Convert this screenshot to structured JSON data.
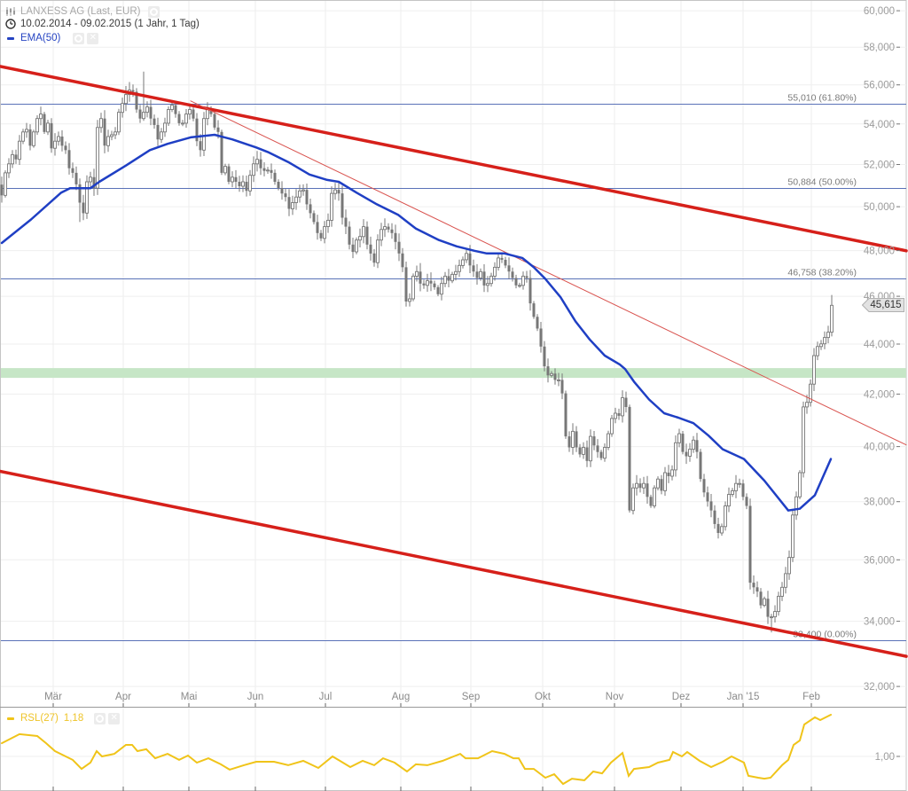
{
  "header": {
    "title": "LANXESS AG (Last, EUR)",
    "date_range": "10.02.2014 - 09.02.2015 (1 Jahr, 1 Tag)",
    "indicator_label": "EMA(50)"
  },
  "rsl_legend": {
    "label": "RSL(27)",
    "value": "1,18"
  },
  "price_tag": {
    "value": "45,615"
  },
  "icons": {
    "title": "candlestick-chart-icon",
    "range": "clock-icon",
    "settings": "gear-icon",
    "remove": "close-icon"
  },
  "chart_data": {
    "type": "line",
    "style": "candlestick",
    "title": "LANXESS AG (Last, EUR)",
    "subtitle": "10.02.2014 - 09.02.2015 (1 Jahr, 1 Tag)",
    "xlabel": "",
    "ylabel": "",
    "grid": true,
    "legend_position": "top-left",
    "colors": {
      "ema": "#1f3fc4",
      "trend_thick": "#d6201a",
      "trend_thin": "#d9534f",
      "fib": "#5a72b8",
      "rsl": "#f0c419",
      "candle": "#777777",
      "band": "#c6e6c6"
    },
    "price_panel": {
      "ylim": [
        31400,
        60600
      ],
      "scale": "log"
    },
    "yaxis": {
      "ticks": [
        {
          "value": 60000,
          "label": "60,000"
        },
        {
          "value": 58000,
          "label": "58,000"
        },
        {
          "value": 56000,
          "label": "56,000"
        },
        {
          "value": 54000,
          "label": "54,000"
        },
        {
          "value": 52000,
          "label": "52,000"
        },
        {
          "value": 50000,
          "label": "50,000"
        },
        {
          "value": 48000,
          "label": "48,000"
        },
        {
          "value": 46000,
          "label": "46,000"
        },
        {
          "value": 44000,
          "label": "44,000"
        },
        {
          "value": 42000,
          "label": "42,000"
        },
        {
          "value": 40000,
          "label": "40,000"
        },
        {
          "value": 38000,
          "label": "38,000"
        },
        {
          "value": 36000,
          "label": "36,000"
        },
        {
          "value": 34000,
          "label": "34,000"
        },
        {
          "value": 32000,
          "label": "32,000"
        }
      ]
    },
    "xaxis": {
      "ticks": [
        {
          "idx": 14.5,
          "label": "Mär"
        },
        {
          "idx": 34.25,
          "label": "Apr"
        },
        {
          "idx": 52.75,
          "label": "Mai"
        },
        {
          "idx": 71.5,
          "label": "Jun"
        },
        {
          "idx": 91.25,
          "label": "Jul"
        },
        {
          "idx": 112.5,
          "label": "Aug"
        },
        {
          "idx": 132.25,
          "label": "Sep"
        },
        {
          "idx": 152.5,
          "label": "Okt"
        },
        {
          "idx": 172.75,
          "label": "Nov"
        },
        {
          "idx": 191.5,
          "label": "Dez"
        },
        {
          "idx": 209,
          "label": "Jan '15"
        },
        {
          "idx": 228.25,
          "label": "Feb"
        }
      ]
    },
    "closes": [
      50530,
      51600,
      52030,
      52480,
      52250,
      53140,
      53600,
      53730,
      52920,
      53600,
      54270,
      54500,
      53600,
      54040,
      52790,
      53140,
      53370,
      52920,
      52700,
      51820,
      51600,
      51050,
      50190,
      49700,
      51170,
      51390,
      50870,
      53820,
      54270,
      52920,
      53370,
      53460,
      53600,
      54590,
      55040,
      55500,
      55730,
      55640,
      54730,
      54270,
      54590,
      54860,
      54270,
      53950,
      53230,
      53600,
      54040,
      54730,
      54950,
      54500,
      54040,
      54040,
      54500,
      54730,
      54270,
      53140,
      52700,
      54270,
      54730,
      54500,
      53820,
      53600,
      51600,
      51910,
      51170,
      51390,
      51170,
      50960,
      51170,
      50740,
      51480,
      52030,
      52250,
      51820,
      51690,
      51730,
      51600,
      51170,
      50870,
      50620,
      50450,
      49900,
      50190,
      50450,
      50740,
      50790,
      50110,
      49700,
      49290,
      48790,
      48550,
      49080,
      49370,
      50620,
      50790,
      50620,
      49490,
      49080,
      48270,
      47940,
      48470,
      48630,
      49080,
      48270,
      47870,
      47460,
      48470,
      48950,
      49080,
      48950,
      48790,
      48390,
      47870,
      47260,
      45780,
      45890,
      46870,
      47070,
      46550,
      46470,
      46670,
      46550,
      46390,
      46090,
      46550,
      46870,
      46670,
      46950,
      47070,
      47340,
      47590,
      47870,
      47340,
      47070,
      46790,
      47070,
      46470,
      46550,
      46870,
      47260,
      47670,
      47590,
      47340,
      47070,
      46790,
      46470,
      46470,
      46870,
      46790,
      45700,
      45130,
      44640,
      43900,
      43100,
      42740,
      42810,
      42560,
      42560,
      42030,
      40380,
      39970,
      40570,
      39970,
      39710,
      39970,
      39470,
      40380,
      40040,
      39800,
      39570,
      39970,
      40480,
      41060,
      41260,
      41160,
      41860,
      41500,
      37690,
      38490,
      38650,
      38490,
      38650,
      38170,
      37850,
      38490,
      38810,
      38390,
      39040,
      38910,
      39140,
      40140,
      40480,
      39800,
      39640,
      39900,
      40240,
      39800,
      38810,
      38330,
      38010,
      37690,
      37220,
      36910,
      37130,
      37850,
      38260,
      38390,
      38650,
      38650,
      38170,
      37850,
      35240,
      35090,
      34950,
      34510,
      34720,
      34140,
      34140,
      34310,
      34800,
      35090,
      35540,
      36080,
      37530,
      38170,
      39040,
      41500,
      41680,
      42390,
      43530,
      43900,
      44010,
      44270,
      44490,
      45615
    ],
    "wick_overrides": {
      "high": {
        "40": 56690,
        "234": 46060
      },
      "low": {
        "22": 49290,
        "217": 33650
      }
    },
    "ema50": {
      "label": "EMA(50)",
      "points": [
        [
          0,
          48340
        ],
        [
          8.25,
          49410
        ],
        [
          16.75,
          50660
        ],
        [
          19.25,
          50870
        ],
        [
          25,
          50870
        ],
        [
          27.5,
          51170
        ],
        [
          35,
          51950
        ],
        [
          41.75,
          52700
        ],
        [
          46.75,
          53010
        ],
        [
          53.25,
          53330
        ],
        [
          60,
          53460
        ],
        [
          65,
          53230
        ],
        [
          71.75,
          52830
        ],
        [
          75,
          52610
        ],
        [
          80.75,
          52120
        ],
        [
          86.75,
          51520
        ],
        [
          91.75,
          51260
        ],
        [
          95,
          51170
        ],
        [
          100,
          50660
        ],
        [
          105.75,
          50110
        ],
        [
          111.75,
          49620
        ],
        [
          116.75,
          48990
        ],
        [
          123.25,
          48470
        ],
        [
          128.25,
          48190
        ],
        [
          133.25,
          47990
        ],
        [
          136.75,
          47870
        ],
        [
          141.75,
          47870
        ],
        [
          146.75,
          47670
        ],
        [
          150,
          47260
        ],
        [
          153.25,
          46750
        ],
        [
          157.5,
          45970
        ],
        [
          161.75,
          44940
        ],
        [
          165.75,
          44190
        ],
        [
          170,
          43530
        ],
        [
          174.25,
          43170
        ],
        [
          175.75,
          42990
        ],
        [
          178.25,
          42490
        ],
        [
          182.5,
          41790
        ],
        [
          186.75,
          41260
        ],
        [
          190.75,
          41090
        ],
        [
          195,
          40880
        ],
        [
          199.25,
          40410
        ],
        [
          203.25,
          39900
        ],
        [
          209.25,
          39540
        ],
        [
          215,
          38750
        ],
        [
          221.75,
          37690
        ],
        [
          225,
          37750
        ],
        [
          229.25,
          38230
        ],
        [
          233.75,
          39540
        ]
      ]
    },
    "fib_levels": [
      {
        "price": 55010,
        "label": "55,010 (61.80%)"
      },
      {
        "price": 50884,
        "label": "50,884 (50.00%)"
      },
      {
        "price": 46758,
        "label": "46,758 (38.20%)"
      },
      {
        "price": 33400,
        "label": "33,400 (0.00%)"
      }
    ],
    "trend_lines": [
      {
        "name": "upper-channel",
        "weight": "thick",
        "from": [
          0,
          56970
        ],
        "to": [
          255,
          47990
        ]
      },
      {
        "name": "lower-channel",
        "weight": "thick",
        "from": [
          0,
          39090
        ],
        "to": [
          255,
          32910
        ]
      },
      {
        "name": "downtrend",
        "weight": "thin",
        "from": [
          53.25,
          55170
        ],
        "to": [
          255,
          40060
        ]
      }
    ],
    "support_band": {
      "range": [
        42640,
        43030
      ]
    },
    "last_price": 45615,
    "rsl": {
      "label": "RSL(27)",
      "current": 1.18,
      "reference_tick": {
        "value": 1.0,
        "label": "1,00"
      },
      "points": [
        [
          0,
          1.057
        ],
        [
          5,
          1.096
        ],
        [
          10,
          1.088
        ],
        [
          12.5,
          1.057
        ],
        [
          15,
          1.023
        ],
        [
          20,
          0.985
        ],
        [
          22.5,
          0.946
        ],
        [
          25,
          0.973
        ],
        [
          26.75,
          1.023
        ],
        [
          28.25,
          1.0
        ],
        [
          31.75,
          1.011
        ],
        [
          35,
          1.05
        ],
        [
          36.75,
          1.05
        ],
        [
          38.25,
          1.023
        ],
        [
          40.75,
          1.031
        ],
        [
          43.25,
          0.992
        ],
        [
          46.75,
          1.011
        ],
        [
          50,
          0.985
        ],
        [
          52.5,
          1.004
        ],
        [
          55,
          0.973
        ],
        [
          58.25,
          0.992
        ],
        [
          61.75,
          0.966
        ],
        [
          64.25,
          0.943
        ],
        [
          68.25,
          0.962
        ],
        [
          71.75,
          0.977
        ],
        [
          76.75,
          0.977
        ],
        [
          80.75,
          0.962
        ],
        [
          85,
          0.981
        ],
        [
          89.25,
          0.95
        ],
        [
          93.25,
          1.0
        ],
        [
          98.25,
          0.954
        ],
        [
          101.75,
          0.981
        ],
        [
          105,
          0.962
        ],
        [
          107.5,
          0.992
        ],
        [
          110.75,
          0.973
        ],
        [
          114.25,
          0.935
        ],
        [
          116.75,
          0.966
        ],
        [
          120,
          0.962
        ],
        [
          124.25,
          0.981
        ],
        [
          129.25,
          1.011
        ],
        [
          130.75,
          0.992
        ],
        [
          134.25,
          0.992
        ],
        [
          138.25,
          1.023
        ],
        [
          141.75,
          1.011
        ],
        [
          144.25,
          0.992
        ],
        [
          145.75,
          0.992
        ],
        [
          147.5,
          0.946
        ],
        [
          150,
          0.946
        ],
        [
          153.25,
          0.908
        ],
        [
          155.75,
          0.923
        ],
        [
          158.25,
          0.881
        ],
        [
          160.75,
          0.904
        ],
        [
          164.25,
          0.897
        ],
        [
          166.75,
          0.935
        ],
        [
          169.25,
          0.927
        ],
        [
          171.75,
          0.973
        ],
        [
          175,
          1.015
        ],
        [
          176.75,
          0.916
        ],
        [
          178.25,
          0.946
        ],
        [
          182.5,
          0.954
        ],
        [
          185,
          0.973
        ],
        [
          188.25,
          0.985
        ],
        [
          189.25,
          1.019
        ],
        [
          191.75,
          1.0
        ],
        [
          193.25,
          1.019
        ],
        [
          196.75,
          0.981
        ],
        [
          200,
          0.954
        ],
        [
          203.25,
          0.977
        ],
        [
          205.75,
          1.0
        ],
        [
          209.25,
          0.973
        ],
        [
          210.5,
          0.916
        ],
        [
          213.25,
          0.908
        ],
        [
          215,
          0.904
        ],
        [
          216.75,
          0.908
        ],
        [
          220,
          0.962
        ],
        [
          221.75,
          0.985
        ],
        [
          223.25,
          1.05
        ],
        [
          225,
          1.069
        ],
        [
          226.25,
          1.138
        ],
        [
          229.25,
          1.169
        ],
        [
          230.75,
          1.157
        ],
        [
          233.75,
          1.18
        ]
      ]
    }
  }
}
